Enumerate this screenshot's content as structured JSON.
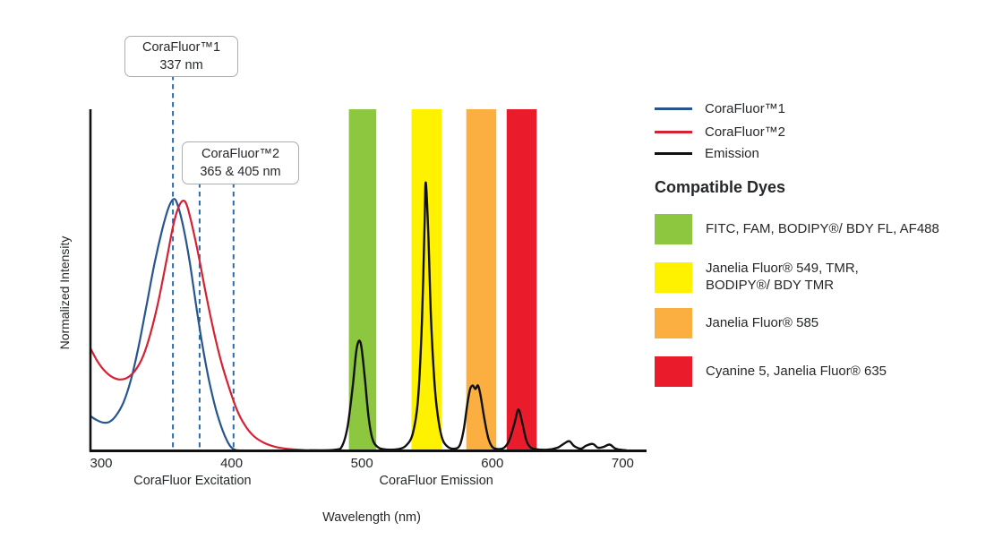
{
  "colors": {
    "background": "#ffffff",
    "axis": "#111111",
    "guide_dashed": "#2e6ba8",
    "text": "#25282b",
    "callout_border": "#adadad"
  },
  "annotations": [
    {
      "line1": "CoraFluor™1",
      "line2": "337 nm"
    },
    {
      "line1": "CoraFluor™2",
      "line2": "365 & 405 nm"
    }
  ],
  "legend": {
    "items": [
      {
        "label": "CoraFluor™1",
        "color": "#27568f"
      },
      {
        "label": "CoraFluor™2",
        "color": "#d52232"
      },
      {
        "label": "Emission",
        "color": "#111111"
      }
    ]
  },
  "dyes": {
    "title": "Compatible Dyes",
    "items": [
      {
        "color": "#8dc63f",
        "label": "FITC, FAM, BODIPY®/ BDY FL, AF488"
      },
      {
        "color": "#fff200",
        "label": "Janelia Fluor® 549, TMR,\nBODIPY®/ BDY TMR"
      },
      {
        "color": "#faaf40",
        "label": "Janelia Fluor® 585"
      },
      {
        "color": "#ea1c2c",
        "label": "Cyanine 5, Janelia Fluor® 635"
      }
    ]
  },
  "chart": {
    "section_labels": [
      {
        "label": "CoraFluor Excitation",
        "center_nm": 370
      },
      {
        "label": "CoraFluor Emission",
        "center_nm": 557
      }
    ]
  },
  "chart_data": {
    "type": "line",
    "title": "",
    "xlabel": "Wavelength (nm)",
    "ylabel": "Normalized Intensity",
    "x_ticks": [
      300,
      400,
      500,
      600,
      700
    ],
    "xlim": [
      291,
      719
    ],
    "ylim": [
      0,
      1
    ],
    "grid": false,
    "legend_position": "right",
    "guide_lines": [
      {
        "label": "337 nm",
        "x_nm": 355.0,
        "anchor": "box1"
      },
      {
        "label": "365 nm",
        "x_nm": 375.5,
        "anchor": "box2"
      },
      {
        "label": "405 nm",
        "x_nm": 401.5,
        "anchor": "box2"
      }
    ],
    "bands": [
      {
        "name": "FITC, FAM, BODIPY®/ BDY FL, AF488",
        "range_nm": [
          490,
          511
        ],
        "color": "#8dc63f"
      },
      {
        "name": "Janelia Fluor® 549, TMR, BODIPY®/ BDY TMR",
        "range_nm": [
          538,
          561
        ],
        "color": "#fff200"
      },
      {
        "name": "Janelia Fluor® 585",
        "range_nm": [
          580,
          603
        ],
        "color": "#faaf40"
      },
      {
        "name": "Cyanine 5, Janelia Fluor® 635",
        "range_nm": [
          611,
          634
        ],
        "color": "#ea1c2c"
      }
    ],
    "series": [
      {
        "name": "CoraFluor™1",
        "color": "#27568f",
        "width": 2.2,
        "points": [
          [
            292,
            0.1
          ],
          [
            296,
            0.09
          ],
          [
            301,
            0.082
          ],
          [
            306,
            0.083
          ],
          [
            311,
            0.1
          ],
          [
            317,
            0.14
          ],
          [
            323,
            0.21
          ],
          [
            329,
            0.31
          ],
          [
            335,
            0.43
          ],
          [
            341,
            0.55
          ],
          [
            347,
            0.65
          ],
          [
            352,
            0.715
          ],
          [
            356,
            0.737
          ],
          [
            359,
            0.715
          ],
          [
            363,
            0.655
          ],
          [
            368,
            0.55
          ],
          [
            373,
            0.42
          ],
          [
            378,
            0.3
          ],
          [
            383,
            0.2
          ],
          [
            388,
            0.12
          ],
          [
            393,
            0.06
          ],
          [
            397,
            0.025
          ],
          [
            400,
            0.008
          ],
          [
            403,
            0.001
          ],
          [
            406,
            0
          ]
        ]
      },
      {
        "name": "CoraFluor™2",
        "color": "#d52232",
        "width": 2.2,
        "points": [
          [
            292,
            0.297
          ],
          [
            297,
            0.262
          ],
          [
            302,
            0.236
          ],
          [
            308,
            0.216
          ],
          [
            314,
            0.208
          ],
          [
            320,
            0.213
          ],
          [
            326,
            0.234
          ],
          [
            332,
            0.275
          ],
          [
            338,
            0.345
          ],
          [
            344,
            0.44
          ],
          [
            350,
            0.555
          ],
          [
            355,
            0.655
          ],
          [
            359,
            0.71
          ],
          [
            363,
            0.732
          ],
          [
            366,
            0.715
          ],
          [
            370,
            0.655
          ],
          [
            375,
            0.565
          ],
          [
            380,
            0.465
          ],
          [
            386,
            0.355
          ],
          [
            392,
            0.26
          ],
          [
            398,
            0.185
          ],
          [
            404,
            0.12
          ],
          [
            410,
            0.075
          ],
          [
            417,
            0.042
          ],
          [
            425,
            0.022
          ],
          [
            434,
            0.01
          ],
          [
            444,
            0.004
          ],
          [
            455,
            0.001
          ],
          [
            465,
            0
          ]
        ]
      },
      {
        "name": "Emission",
        "color": "#111111",
        "width": 2.4,
        "points": [
          [
            460,
            0
          ],
          [
            480,
            0.002
          ],
          [
            485,
            0.015
          ],
          [
            489,
            0.07
          ],
          [
            493,
            0.19
          ],
          [
            496,
            0.3
          ],
          [
            499,
            0.315
          ],
          [
            502,
            0.22
          ],
          [
            505,
            0.1
          ],
          [
            508,
            0.035
          ],
          [
            512,
            0.01
          ],
          [
            518,
            0.003
          ],
          [
            528,
            0.004
          ],
          [
            534,
            0.015
          ],
          [
            539,
            0.05
          ],
          [
            543,
            0.15
          ],
          [
            546,
            0.38
          ],
          [
            548,
            0.66
          ],
          [
            549,
            0.785
          ],
          [
            551,
            0.62
          ],
          [
            553,
            0.38
          ],
          [
            556,
            0.18
          ],
          [
            559,
            0.08
          ],
          [
            562,
            0.03
          ],
          [
            566,
            0.01
          ],
          [
            571,
            0.005
          ],
          [
            575,
            0.015
          ],
          [
            578,
            0.06
          ],
          [
            581,
            0.14
          ],
          [
            583,
            0.18
          ],
          [
            585,
            0.19
          ],
          [
            587,
            0.18
          ],
          [
            589,
            0.19
          ],
          [
            591,
            0.16
          ],
          [
            594,
            0.09
          ],
          [
            597,
            0.035
          ],
          [
            600,
            0.01
          ],
          [
            604,
            0.004
          ],
          [
            609,
            0.008
          ],
          [
            613,
            0.03
          ],
          [
            617,
            0.08
          ],
          [
            620,
            0.12
          ],
          [
            623,
            0.08
          ],
          [
            626,
            0.03
          ],
          [
            629,
            0.01
          ],
          [
            633,
            0.004
          ],
          [
            642,
            0.002
          ],
          [
            650,
            0.008
          ],
          [
            655,
            0.02
          ],
          [
            659,
            0.027
          ],
          [
            663,
            0.012
          ],
          [
            668,
            0.005
          ],
          [
            672,
            0.014
          ],
          [
            677,
            0.019
          ],
          [
            681,
            0.008
          ],
          [
            685,
            0.01
          ],
          [
            690,
            0.017
          ],
          [
            694,
            0.006
          ],
          [
            698,
            0.002
          ],
          [
            703,
            0
          ]
        ]
      }
    ]
  }
}
